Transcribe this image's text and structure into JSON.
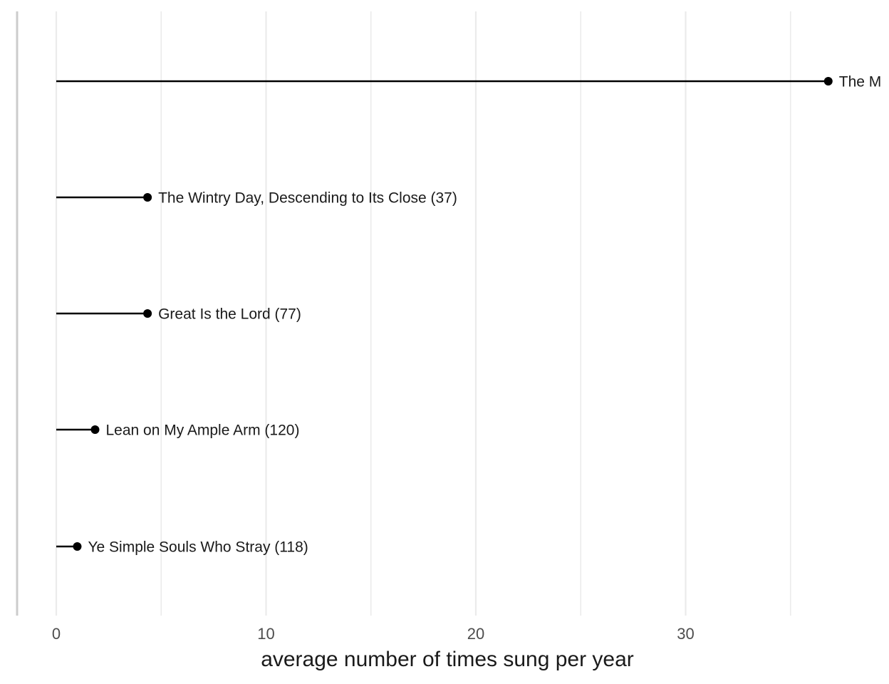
{
  "chart_data": {
    "type": "lollipop",
    "title": "",
    "xlabel": "average number of times sung per year",
    "ylabel": "",
    "xlim": [
      -1.9,
      39.8
    ],
    "xticks": [
      0,
      10,
      20,
      30
    ],
    "xtick_labels": [
      "0",
      "10",
      "20",
      "30"
    ],
    "grid": "vertical major and minor",
    "legend": "none",
    "colors": {
      "stem": "#000000",
      "grid": "#ebebeb",
      "axis": "#cccccc"
    },
    "points": [
      {
        "label": "The M",
        "value": 36.8
      },
      {
        "label": "The Wintry Day, Descending to Its Close (37)",
        "value": 4.35
      },
      {
        "label": "Great Is the Lord (77)",
        "value": 4.35
      },
      {
        "label": "Lean on My Ample Arm (120)",
        "value": 1.85
      },
      {
        "label": "Ye Simple Souls Who Stray (118)",
        "value": 1.0
      }
    ]
  }
}
